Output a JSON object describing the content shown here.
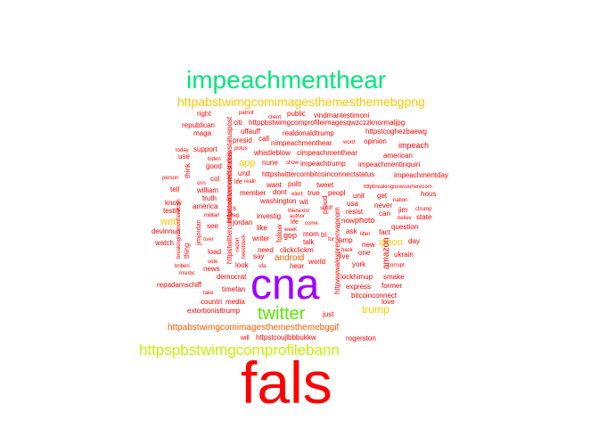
{
  "word_cloud": {
    "colors": {
      "red": "#ff0000",
      "orange": "#ff5a00",
      "gold": "#ffc800",
      "yellow_green": "#c8f000",
      "green": "#5ae600",
      "spring": "#00e67a",
      "violet": "#a000ff"
    },
    "words": [
      {
        "text": "fals",
        "color": "red"
      },
      {
        "text": "cna",
        "color": "violet"
      },
      {
        "text": "impeachmenthear",
        "color": "spring"
      },
      {
        "text": "twitter",
        "color": "green"
      },
      {
        "text": "httpspbstwimgcomprofilebann",
        "color": "yellow_green"
      },
      {
        "text": "httpabstwimgcomimagesthemesthemebgpng",
        "color": "gold"
      },
      {
        "text": "trump",
        "color": "gold"
      },
      {
        "text": "iphon",
        "color": "gold"
      },
      {
        "text": "app",
        "color": "gold"
      },
      {
        "text": "web",
        "color": "gold"
      },
      {
        "text": "android",
        "color": "orange"
      },
      {
        "text": "httpabstwimgcomimagesthemesthemebggif",
        "color": "orange"
      },
      {
        "text": "rogerston",
        "color": "red"
      },
      {
        "text": "httpstcoujlbbbukkw",
        "color": "red"
      },
      {
        "text": "will",
        "color": "red"
      },
      {
        "text": "extortionisttrump",
        "color": "red"
      },
      {
        "text": "just",
        "color": "red"
      },
      {
        "text": "countri",
        "color": "red"
      },
      {
        "text": "media",
        "color": "red"
      },
      {
        "text": "timefan",
        "color": "red"
      },
      {
        "text": "repadamschiff",
        "color": "red"
      },
      {
        "text": "democrat",
        "color": "red"
      },
      {
        "text": "news",
        "color": "red"
      },
      {
        "text": "take",
        "color": "red"
      },
      {
        "text": "briberi",
        "color": "red"
      },
      {
        "text": "msnbc",
        "color": "red"
      },
      {
        "text": "vote",
        "color": "red"
      },
      {
        "text": "load",
        "color": "red"
      },
      {
        "text": "jimjordan",
        "color": "red"
      },
      {
        "text": "thing",
        "color": "red"
      },
      {
        "text": "watch",
        "color": "red"
      },
      {
        "text": "devinnun",
        "color": "red"
      },
      {
        "text": "see",
        "color": "red"
      },
      {
        "text": "militari",
        "color": "red"
      },
      {
        "text": "america",
        "color": "red"
      },
      {
        "text": "testifi",
        "color": "red"
      },
      {
        "text": "know",
        "color": "red"
      },
      {
        "text": "truth",
        "color": "red"
      },
      {
        "text": "william",
        "color": "red"
      },
      {
        "text": "tell",
        "color": "red"
      },
      {
        "text": "col",
        "color": "red"
      },
      {
        "text": "cnn",
        "color": "red"
      },
      {
        "text": "good",
        "color": "red"
      },
      {
        "text": "person",
        "color": "red"
      },
      {
        "text": "biden",
        "color": "red"
      },
      {
        "text": "use",
        "color": "red"
      },
      {
        "text": "today",
        "color": "red"
      },
      {
        "text": "support",
        "color": "red"
      },
      {
        "text": "maga",
        "color": "red"
      },
      {
        "text": "republican",
        "color": "red"
      },
      {
        "text": "right",
        "color": "red"
      },
      {
        "text": "citi",
        "color": "red"
      },
      {
        "text": "patriot",
        "color": "red"
      },
      {
        "text": "uffauff",
        "color": "red"
      },
      {
        "text": "httppbstwimgcomprofileimagesqwzczzknormaljpg",
        "color": "red"
      },
      {
        "text": "client",
        "color": "red"
      },
      {
        "text": "public",
        "color": "red"
      },
      {
        "text": "vindmantestimoni",
        "color": "red"
      },
      {
        "text": "realdonaldtrump",
        "color": "red"
      },
      {
        "text": "httpstcoghezbaewg",
        "color": "red"
      },
      {
        "text": "presid",
        "color": "red"
      },
      {
        "text": "call",
        "color": "red"
      },
      {
        "text": "nimpeachmenthear",
        "color": "red"
      },
      {
        "text": "word",
        "color": "red"
      },
      {
        "text": "opinion",
        "color": "red"
      },
      {
        "text": "american",
        "color": "red"
      },
      {
        "text": "impeach",
        "color": "red"
      },
      {
        "text": "potus",
        "color": "red"
      },
      {
        "text": "whistleblow",
        "color": "red"
      },
      {
        "text": "cimpeachmenthear",
        "color": "red"
      },
      {
        "text": "nune",
        "color": "red"
      },
      {
        "text": "show",
        "color": "red"
      },
      {
        "text": "impeachtrump",
        "color": "red"
      },
      {
        "text": "impeachmentinquiri",
        "color": "red"
      },
      {
        "text": "und",
        "color": "red"
      },
      {
        "text": "httpstwittercombitcoinconnectstatus",
        "color": "red"
      },
      {
        "text": "impeachmentday",
        "color": "red"
      },
      {
        "text": "life",
        "color": "red"
      },
      {
        "text": "realli",
        "color": "red"
      },
      {
        "text": "want",
        "color": "red"
      },
      {
        "text": "polit",
        "color": "red"
      },
      {
        "text": "tweet",
        "color": "red"
      },
      {
        "text": "httpbreakingnewsvuherecom",
        "color": "red"
      },
      {
        "text": "member",
        "color": "red"
      },
      {
        "text": "dont",
        "color": "red"
      },
      {
        "text": "elect",
        "color": "red"
      },
      {
        "text": "true",
        "color": "red"
      },
      {
        "text": "peopl",
        "color": "red"
      },
      {
        "text": "unit",
        "color": "red"
      },
      {
        "text": "get",
        "color": "red"
      },
      {
        "text": "hous",
        "color": "red"
      },
      {
        "text": "washington",
        "color": "red"
      },
      {
        "text": "wit",
        "color": "red"
      },
      {
        "text": "usa",
        "color": "red"
      },
      {
        "text": "nation",
        "color": "red"
      },
      {
        "text": "never",
        "color": "red"
      },
      {
        "text": "jim",
        "color": "red"
      },
      {
        "text": "ctrump",
        "color": "red"
      },
      {
        "text": "investig",
        "color": "red"
      },
      {
        "text": "thenexist",
        "color": "red"
      },
      {
        "text": "schiff",
        "color": "red"
      },
      {
        "text": "resist",
        "color": "red"
      },
      {
        "text": "can",
        "color": "red"
      },
      {
        "text": "believ",
        "color": "red"
      },
      {
        "text": "state",
        "color": "red"
      },
      {
        "text": "jordan",
        "color": "red"
      },
      {
        "text": "author",
        "color": "red"
      },
      {
        "text": "life",
        "color": "red"
      },
      {
        "text": "come",
        "color": "red"
      },
      {
        "text": "now",
        "color": "red"
      },
      {
        "text": "photo",
        "color": "red"
      },
      {
        "text": "question",
        "color": "red"
      },
      {
        "text": "like",
        "color": "red"
      },
      {
        "text": "week",
        "color": "red"
      },
      {
        "text": "ask",
        "color": "red"
      },
      {
        "text": "liber",
        "color": "red"
      },
      {
        "text": "writer",
        "color": "red"
      },
      {
        "text": "gop",
        "color": "red"
      },
      {
        "text": "mom",
        "color": "red"
      },
      {
        "text": "tri",
        "color": "red"
      },
      {
        "text": "amp",
        "color": "red"
      },
      {
        "text": "fact",
        "color": "red"
      },
      {
        "text": "day",
        "color": "red"
      },
      {
        "text": "talk",
        "color": "red"
      },
      {
        "text": "new",
        "color": "red"
      },
      {
        "text": "say",
        "color": "red"
      },
      {
        "text": "need",
        "color": "red"
      },
      {
        "text": "clickclickm",
        "color": "red"
      },
      {
        "text": "back",
        "color": "red"
      },
      {
        "text": "one",
        "color": "red"
      },
      {
        "text": "ukrain",
        "color": "red"
      },
      {
        "text": "live",
        "color": "red"
      },
      {
        "text": "look",
        "color": "red"
      },
      {
        "text": "ufa",
        "color": "red"
      },
      {
        "text": "hear",
        "color": "red"
      },
      {
        "text": "world",
        "color": "red"
      },
      {
        "text": "york",
        "color": "red"
      },
      {
        "text": "corrupt",
        "color": "red"
      },
      {
        "text": "lockhimup",
        "color": "red"
      },
      {
        "text": "smake",
        "color": "red"
      },
      {
        "text": "express",
        "color": "red"
      },
      {
        "text": "former",
        "color": "red"
      },
      {
        "text": "bitcoinconnect",
        "color": "red"
      },
      {
        "text": "love",
        "color": "red"
      },
      {
        "text": "httpstwittercombitcoinconnectstatus",
        "color": "red"
      },
      {
        "text": "httpwwwalexpresenvapcom",
        "color": "red"
      },
      {
        "text": "amazon",
        "color": "red"
      },
      {
        "text": "follow",
        "color": "red"
      },
      {
        "text": "breakingnewsvuherecom",
        "color": "red"
      },
      {
        "text": "over",
        "color": "red"
      },
      {
        "text": "report",
        "color": "red"
      },
      {
        "text": "tweetdeck",
        "color": "red"
      },
      {
        "text": "proud",
        "color": "red"
      },
      {
        "text": "for",
        "color": "red"
      },
      {
        "text": "think",
        "color": "red"
      },
      {
        "text": "httpstwittercomfuinceiwstatuspost",
        "color": "red"
      },
      {
        "text": "s",
        "color": "red"
      },
      {
        "text": "lag",
        "color": "red"
      }
    ]
  }
}
